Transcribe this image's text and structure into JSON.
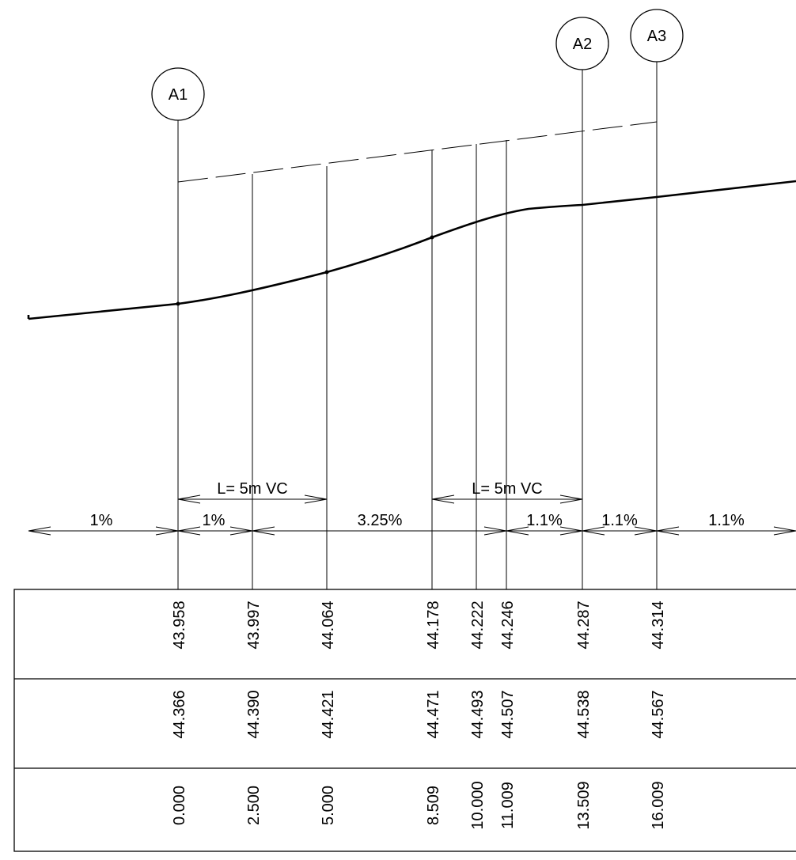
{
  "sections": [
    {
      "label": "A1"
    },
    {
      "label": "A2"
    },
    {
      "label": "A3"
    }
  ],
  "vertical_curves": [
    {
      "label": "L= 5m VC"
    },
    {
      "label": "L= 5m VC"
    }
  ],
  "grades": [
    "1%",
    "1%",
    "3.25%",
    "1.1%",
    "1.1%",
    "1.1%"
  ],
  "stations": [
    {
      "row1": "43.958",
      "row2": "44.366",
      "row3": "0.000"
    },
    {
      "row1": "43.997",
      "row2": "44.390",
      "row3": "2.500"
    },
    {
      "row1": "44.064",
      "row2": "44.421",
      "row3": "5.000"
    },
    {
      "row1": "44.178",
      "row2": "44.471",
      "row3": "8.509"
    },
    {
      "row1": "44.222",
      "row2": "44.493",
      "row3": "10.000"
    },
    {
      "row1": "44.246",
      "row2": "44.507",
      "row3": "11.009"
    },
    {
      "row1": "44.287",
      "row2": "44.538",
      "row3": "13.509"
    },
    {
      "row1": "44.314",
      "row2": "44.567",
      "row3": "16.009"
    }
  ]
}
